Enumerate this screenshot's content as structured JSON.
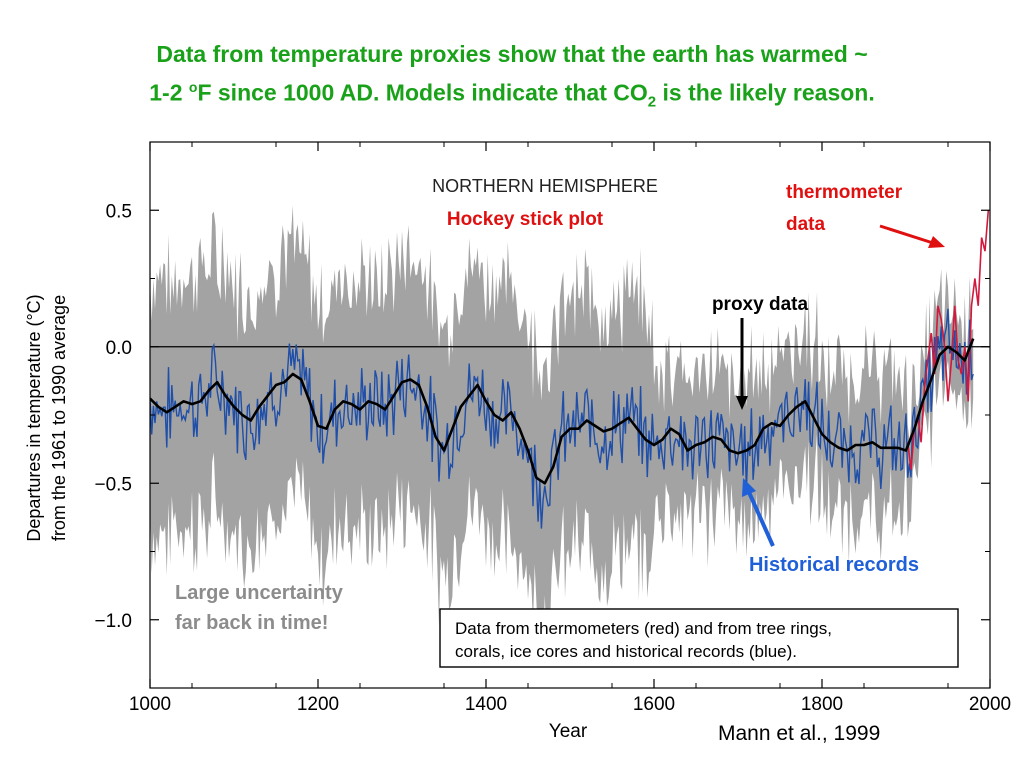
{
  "headline": {
    "line1": "Data from temperature proxies show that the earth has warmed ~",
    "line2_start": "1-2 ",
    "line2_sup": "o",
    "line2_mid": "F since 1000 AD. Models indicate that CO",
    "line2_sub": "2",
    "line2_end": " is the likely reason."
  },
  "credit": "Mann et al., 1999",
  "colors": {
    "headline": "#1aa11a",
    "proxy": "#1f4fa8",
    "uncertainty": "#a3a3a3",
    "thermometer": "#d2183c",
    "smooth": "#000000",
    "annotation_red": "#e01010",
    "annotation_blue": "#1f5fd8",
    "annotation_gray": "#8c8c8c"
  },
  "chart_data": {
    "type": "line",
    "title": "NORTHERN HEMISPHERE",
    "xlabel": "Year",
    "ylabel_line1": "Departures in temperature (°C)",
    "ylabel_line2": "from the 1961 to 1990 average",
    "xlim": [
      1000,
      2000
    ],
    "ylim": [
      -1.25,
      0.75
    ],
    "xticks": [
      1000,
      1200,
      1400,
      1600,
      1800,
      2000
    ],
    "yticks": [
      0.5,
      0.0,
      -0.5,
      -1.0
    ],
    "ytick_labels": [
      "0.5",
      "0.0",
      "−0.5",
      "−1.0"
    ],
    "grid": false,
    "zero_line": 0.0,
    "series": [
      {
        "name": "proxy (smoothed)",
        "x": [
          1000,
          1010,
          1020,
          1030,
          1040,
          1050,
          1060,
          1070,
          1080,
          1090,
          1100,
          1110,
          1120,
          1130,
          1140,
          1150,
          1160,
          1170,
          1180,
          1190,
          1200,
          1210,
          1220,
          1230,
          1240,
          1250,
          1260,
          1270,
          1280,
          1290,
          1300,
          1310,
          1320,
          1330,
          1340,
          1350,
          1360,
          1370,
          1380,
          1390,
          1400,
          1410,
          1420,
          1430,
          1440,
          1450,
          1460,
          1470,
          1480,
          1490,
          1500,
          1510,
          1520,
          1530,
          1540,
          1550,
          1560,
          1570,
          1580,
          1590,
          1600,
          1610,
          1620,
          1630,
          1640,
          1650,
          1660,
          1670,
          1680,
          1690,
          1700,
          1710,
          1720,
          1730,
          1740,
          1750,
          1760,
          1770,
          1780,
          1790,
          1800,
          1810,
          1820,
          1830,
          1840,
          1850,
          1860,
          1870,
          1880,
          1890,
          1900,
          1910,
          1920,
          1930,
          1940,
          1950,
          1960,
          1970,
          1980
        ],
        "values": [
          -0.19,
          -0.22,
          -0.24,
          -0.22,
          -0.2,
          -0.21,
          -0.2,
          -0.16,
          -0.13,
          -0.18,
          -0.22,
          -0.25,
          -0.27,
          -0.22,
          -0.18,
          -0.14,
          -0.13,
          -0.1,
          -0.12,
          -0.2,
          -0.29,
          -0.3,
          -0.23,
          -0.2,
          -0.21,
          -0.23,
          -0.2,
          -0.21,
          -0.23,
          -0.18,
          -0.13,
          -0.12,
          -0.14,
          -0.22,
          -0.33,
          -0.38,
          -0.3,
          -0.22,
          -0.18,
          -0.14,
          -0.2,
          -0.25,
          -0.27,
          -0.24,
          -0.3,
          -0.38,
          -0.48,
          -0.5,
          -0.44,
          -0.33,
          -0.3,
          -0.3,
          -0.27,
          -0.29,
          -0.31,
          -0.3,
          -0.28,
          -0.26,
          -0.3,
          -0.34,
          -0.36,
          -0.34,
          -0.3,
          -0.32,
          -0.38,
          -0.36,
          -0.35,
          -0.33,
          -0.34,
          -0.38,
          -0.39,
          -0.38,
          -0.36,
          -0.3,
          -0.28,
          -0.29,
          -0.25,
          -0.22,
          -0.2,
          -0.26,
          -0.32,
          -0.35,
          -0.37,
          -0.38,
          -0.36,
          -0.36,
          -0.35,
          -0.37,
          -0.37,
          -0.37,
          -0.38,
          -0.3,
          -0.2,
          -0.12,
          -0.03,
          0.0,
          -0.02,
          -0.05,
          0.03
        ]
      },
      {
        "name": "thermometer",
        "x": [
          1902,
          1906,
          1910,
          1914,
          1918,
          1922,
          1926,
          1930,
          1934,
          1938,
          1942,
          1946,
          1950,
          1954,
          1958,
          1962,
          1966,
          1970,
          1974,
          1978,
          1982,
          1986,
          1990,
          1994,
          1998
        ],
        "values": [
          -0.35,
          -0.45,
          -0.3,
          -0.25,
          -0.35,
          -0.15,
          -0.05,
          0.05,
          -0.1,
          0.15,
          0.1,
          0.0,
          -0.2,
          -0.05,
          0.15,
          -0.05,
          -0.1,
          0.0,
          -0.2,
          0.15,
          0.25,
          0.15,
          0.4,
          0.35,
          0.5
        ]
      }
    ],
    "labels": {
      "hockey": "Hockey stick plot",
      "thermo_1": "thermometer",
      "thermo_2": "data",
      "proxy": "proxy data",
      "historical": "Historical records",
      "uncert_1": "Large uncertainty",
      "uncert_2": "far back in time!",
      "box_1": "Data from thermometers (red) and from tree rings,",
      "box_2": "corals, ice cores and historical records (blue)."
    }
  }
}
